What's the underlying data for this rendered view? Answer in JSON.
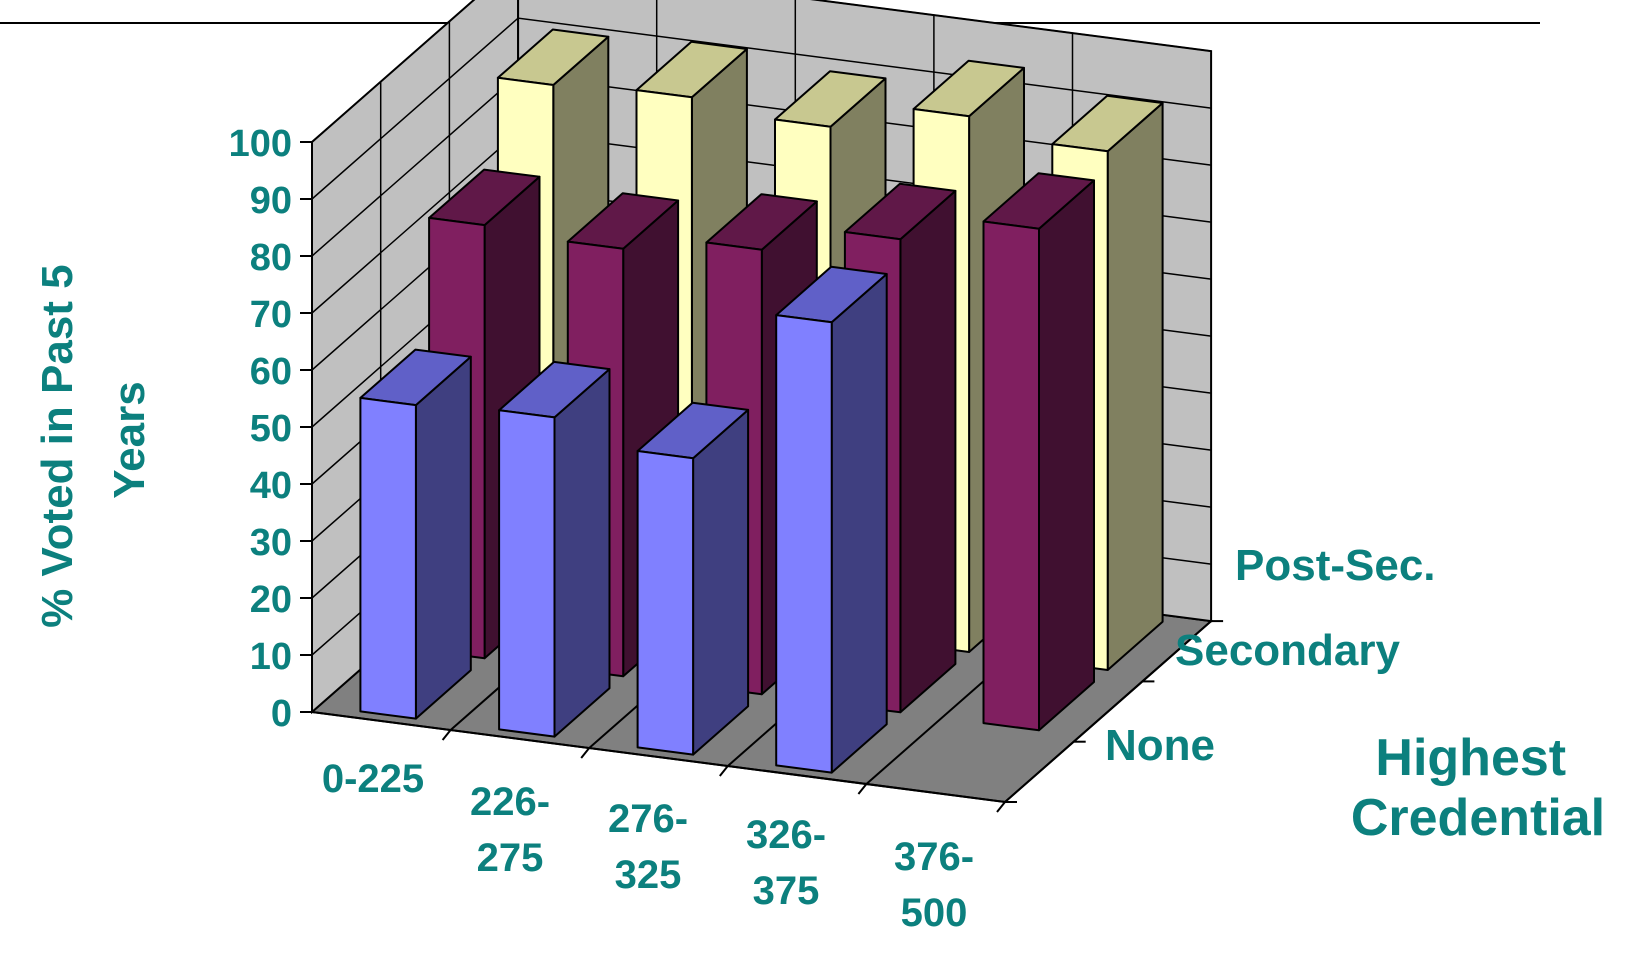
{
  "chart_data": {
    "type": "bar",
    "subtype": "3d-column",
    "title": "",
    "ylabel": [
      "% Voted in Past 5",
      "Years"
    ],
    "zlabel": [
      "Highest",
      "Credential"
    ],
    "ylim": [
      0,
      100
    ],
    "yticks": [
      "0",
      "10",
      "20",
      "30",
      "40",
      "50",
      "60",
      "70",
      "80",
      "90",
      "100"
    ],
    "categories": [
      [
        "0-225"
      ],
      [
        "226-",
        "275"
      ],
      [
        "276-",
        "325"
      ],
      [
        "326-",
        "375"
      ],
      [
        "376-",
        "500"
      ]
    ],
    "series": [
      {
        "name": "None",
        "values": [
          55,
          56,
          52,
          79,
          null
        ]
      },
      {
        "name": "Secondary",
        "values": [
          76,
          75,
          78,
          83,
          88
        ]
      },
      {
        "name": "Post-Sec.",
        "values": [
          90,
          91,
          89,
          94,
          91
        ]
      }
    ],
    "colors": {
      "None": {
        "front": "#8080ff",
        "side": "#3f3f80",
        "top": "#6060c8"
      },
      "Secondary": {
        "front": "#801f60",
        "side": "#401030",
        "top": "#601848"
      },
      "Post-Sec.": {
        "front": "#ffffc0",
        "side": "#808060",
        "top": "#c8c890"
      },
      "wall": "#c0c0c0",
      "floor": "#808080"
    },
    "grid": true
  }
}
